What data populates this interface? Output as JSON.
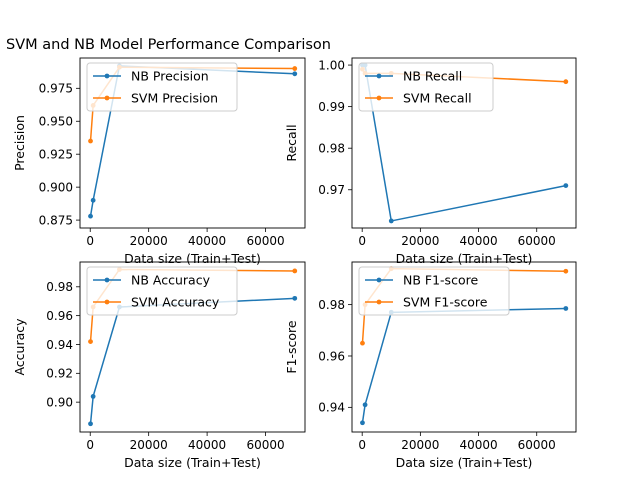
{
  "figure": {
    "title": "SVM and NB Model Performance Comparison"
  },
  "colors": {
    "nb": "#1f77b4",
    "svm": "#ff7f0e",
    "axes": "#000000",
    "background": "#ffffff"
  },
  "chart_data": [
    {
      "type": "line",
      "title": "",
      "xlabel": "Data size (Train+Test)",
      "ylabel": "Precision",
      "xlim": [
        -3500,
        73500
      ],
      "ylim": [
        0.869,
        0.998
      ],
      "xticks": [
        0,
        20000,
        40000,
        60000
      ],
      "xtick_labels": [
        "0",
        "20000",
        "40000",
        "60000"
      ],
      "yticks": [
        0.875,
        0.9,
        0.925,
        0.95,
        0.975
      ],
      "ytick_labels": [
        "0.875",
        "0.900",
        "0.925",
        "0.950",
        "0.975"
      ],
      "legend_position": "upper-left",
      "series": [
        {
          "name": "NB Precision",
          "x": [
            100,
            1000,
            10000,
            70000
          ],
          "y": [
            0.878,
            0.89,
            0.992,
            0.986
          ]
        },
        {
          "name": "SVM Precision",
          "x": [
            100,
            1000,
            10000,
            70000
          ],
          "y": [
            0.935,
            0.962,
            0.991,
            0.99
          ]
        }
      ]
    },
    {
      "type": "line",
      "title": "",
      "xlabel": "Data size (Train+Test)",
      "ylabel": "Recall",
      "xlim": [
        -3500,
        73500
      ],
      "ylim": [
        0.9608,
        1.0017
      ],
      "xticks": [
        0,
        20000,
        40000,
        60000
      ],
      "xtick_labels": [
        "0",
        "20000",
        "40000",
        "60000"
      ],
      "yticks": [
        0.97,
        0.98,
        0.99,
        1.0
      ],
      "ytick_labels": [
        "0.97",
        "0.98",
        "0.99",
        "1.00"
      ],
      "legend_position": "upper-left",
      "series": [
        {
          "name": "NB Recall",
          "x": [
            100,
            1000,
            10000,
            70000
          ],
          "y": [
            1.0,
            1.0,
            0.9625,
            0.971
          ]
        },
        {
          "name": "SVM Recall",
          "x": [
            100,
            1000,
            10000,
            70000
          ],
          "y": [
            0.999,
            0.998,
            0.998,
            0.996
          ]
        }
      ]
    },
    {
      "type": "line",
      "title": "",
      "xlabel": "Data size (Train+Test)",
      "ylabel": "Accuracy",
      "xlim": [
        -3500,
        73500
      ],
      "ylim": [
        0.8793,
        0.9972
      ],
      "xticks": [
        0,
        20000,
        40000,
        60000
      ],
      "xtick_labels": [
        "0",
        "20000",
        "40000",
        "60000"
      ],
      "yticks": [
        0.9,
        0.92,
        0.94,
        0.96,
        0.98
      ],
      "ytick_labels": [
        "0.90",
        "0.92",
        "0.94",
        "0.96",
        "0.98"
      ],
      "legend_position": "upper-left",
      "series": [
        {
          "name": "NB Accuracy",
          "x": [
            100,
            1000,
            10000,
            70000
          ],
          "y": [
            0.885,
            0.904,
            0.966,
            0.972
          ]
        },
        {
          "name": "SVM Accuracy",
          "x": [
            100,
            1000,
            10000,
            70000
          ],
          "y": [
            0.942,
            0.966,
            0.992,
            0.991
          ]
        }
      ]
    },
    {
      "type": "line",
      "title": "",
      "xlabel": "Data size (Train+Test)",
      "ylabel": "F1-score",
      "xlim": [
        -3500,
        73500
      ],
      "ylim": [
        0.9304,
        0.9966
      ],
      "xticks": [
        0,
        20000,
        40000,
        60000
      ],
      "xtick_labels": [
        "0",
        "20000",
        "40000",
        "60000"
      ],
      "yticks": [
        0.94,
        0.96,
        0.98
      ],
      "ytick_labels": [
        "0.94",
        "0.96",
        "0.98"
      ],
      "legend_position": "upper-left",
      "series": [
        {
          "name": "NB F1-score",
          "x": [
            100,
            1000,
            10000,
            70000
          ],
          "y": [
            0.934,
            0.941,
            0.977,
            0.9785
          ]
        },
        {
          "name": "SVM F1-score",
          "x": [
            100,
            1000,
            10000,
            70000
          ],
          "y": [
            0.965,
            0.98,
            0.994,
            0.993
          ]
        }
      ]
    }
  ]
}
